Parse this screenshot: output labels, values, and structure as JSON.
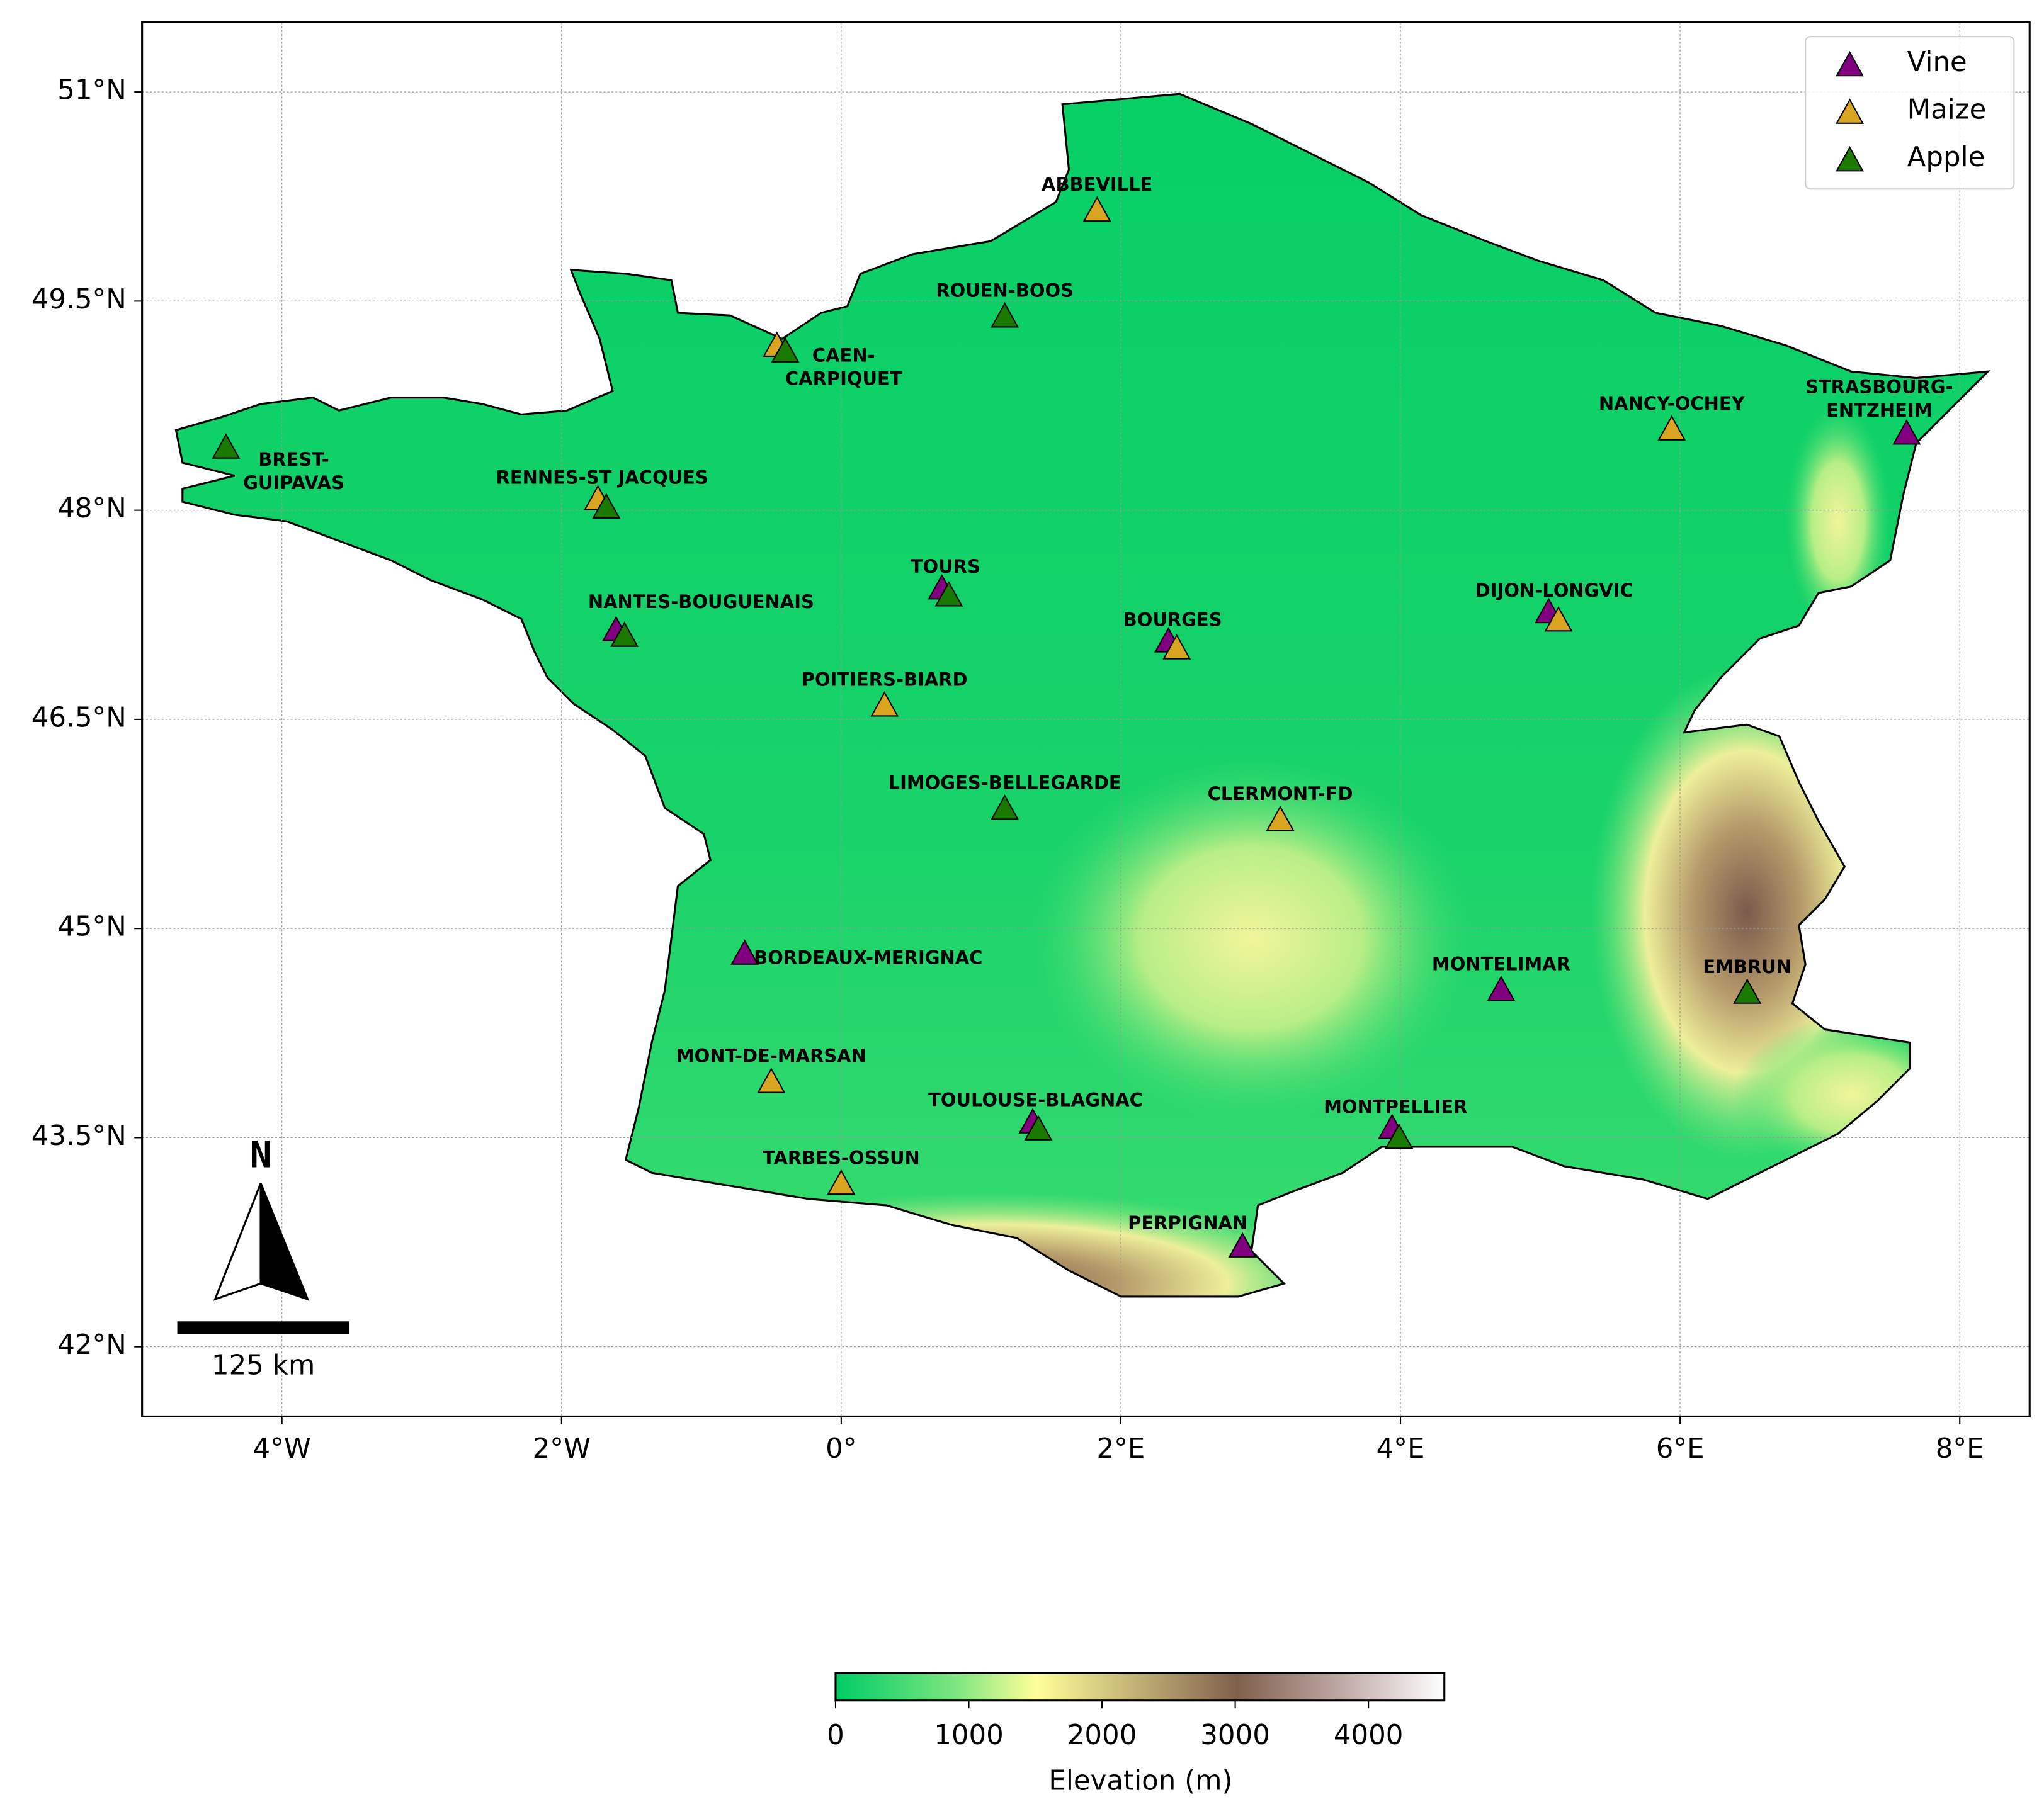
{
  "chart_data": {
    "type": "map",
    "xlim": [
      -5,
      8.5
    ],
    "ylim": [
      41.5,
      51.5
    ],
    "xticks": [
      {
        "value": -4,
        "label": "4°W"
      },
      {
        "value": -2,
        "label": "2°W"
      },
      {
        "value": 0,
        "label": "0°"
      },
      {
        "value": 2,
        "label": "2°E"
      },
      {
        "value": 4,
        "label": "4°E"
      },
      {
        "value": 6,
        "label": "6°E"
      },
      {
        "value": 8,
        "label": "8°E"
      }
    ],
    "yticks": [
      {
        "value": 42,
        "label": "42°N"
      },
      {
        "value": 43.5,
        "label": "43.5°N"
      },
      {
        "value": 45,
        "label": "45°N"
      },
      {
        "value": 46.5,
        "label": "46.5°N"
      },
      {
        "value": 48,
        "label": "48°N"
      },
      {
        "value": 49.5,
        "label": "49.5°N"
      },
      {
        "value": 51,
        "label": "51°N"
      }
    ],
    "grid": true,
    "legend": "upper right",
    "series": [
      {
        "name": "Vine",
        "color": "#800080",
        "x": [
          7.62,
          5.06,
          -1.61,
          0.72,
          2.34,
          -0.69,
          1.37,
          4.72,
          3.94,
          2.87
        ],
        "values": [
          48.54,
          47.26,
          47.13,
          47.43,
          47.05,
          44.81,
          43.6,
          44.55,
          43.56,
          42.71
        ]
      },
      {
        "name": "Maize",
        "color": "#daa520",
        "x": [
          1.83,
          -0.46,
          -1.74,
          5.94,
          5.13,
          2.4,
          0.31,
          3.14,
          -0.5,
          0.0
        ],
        "values": [
          50.14,
          49.17,
          48.07,
          48.57,
          47.2,
          47.0,
          46.59,
          45.77,
          43.89,
          43.16
        ]
      },
      {
        "name": "Apple",
        "color": "#1a7a00",
        "x": [
          1.17,
          -0.4,
          -4.4,
          -1.68,
          -1.55,
          0.77,
          1.17,
          1.41,
          3.99,
          6.48
        ],
        "values": [
          49.38,
          49.13,
          48.44,
          48.01,
          47.09,
          47.38,
          45.85,
          43.55,
          43.49,
          44.53
        ]
      }
    ],
    "stations": [
      {
        "label": [
          "ABBEVILLE"
        ],
        "x": 1.83,
        "y": 50.14
      },
      {
        "label": [
          "ROUEN-BOOS"
        ],
        "x": 1.17,
        "y": 49.38
      },
      {
        "label": [
          "CAEN-",
          "CARPIQUET"
        ],
        "x": -0.43,
        "y": 49.15
      },
      {
        "label": [
          "BREST-",
          "GUIPAVAS"
        ],
        "x": -4.4,
        "y": 48.44
      },
      {
        "label": [
          "RENNES-ST JACQUES"
        ],
        "x": -1.71,
        "y": 48.04
      },
      {
        "label": [
          "STRASBOURG-",
          "ENTZHEIM"
        ],
        "x": 7.62,
        "y": 48.54
      },
      {
        "label": [
          "NANCY-OCHEY"
        ],
        "x": 5.94,
        "y": 48.57
      },
      {
        "label": [
          "NANTES-BOUGUENAIS"
        ],
        "x": -1.58,
        "y": 47.11
      },
      {
        "label": [
          "TOURS"
        ],
        "x": 0.745,
        "y": 47.4
      },
      {
        "label": [
          "BOURGES"
        ],
        "x": 2.37,
        "y": 47.02
      },
      {
        "label": [
          "DIJON-LONGVIC"
        ],
        "x": 5.1,
        "y": 47.23
      },
      {
        "label": [
          "POITIERS-BIARD"
        ],
        "x": 0.31,
        "y": 46.59
      },
      {
        "label": [
          "LIMOGES-BELLEGARDE"
        ],
        "x": 1.17,
        "y": 45.85
      },
      {
        "label": [
          "CLERMONT-FD"
        ],
        "x": 3.14,
        "y": 45.77
      },
      {
        "label": [
          "BORDEAUX-MERIGNAC"
        ],
        "x": -0.69,
        "y": 44.81
      },
      {
        "label": [
          "MONTELIMAR"
        ],
        "x": 4.72,
        "y": 44.55
      },
      {
        "label": [
          "EMBRUN"
        ],
        "x": 6.48,
        "y": 44.53
      },
      {
        "label": [
          "MONT-DE-MARSAN"
        ],
        "x": -0.5,
        "y": 43.89
      },
      {
        "label": [
          "TOULOUSE-BLAGNAC"
        ],
        "x": 1.39,
        "y": 43.575
      },
      {
        "label": [
          "MONTPELLIER"
        ],
        "x": 3.965,
        "y": 43.525
      },
      {
        "label": [
          "TARBES-OSSUN"
        ],
        "x": 0.0,
        "y": 43.16
      },
      {
        "label": [
          "PERPIGNAN"
        ],
        "x": 2.87,
        "y": 42.71
      }
    ],
    "north_arrow": "N",
    "scale_bar": "125 km",
    "colorbar": {
      "label": "Elevation (m)",
      "lim": [
        0,
        4570
      ],
      "ticks": [
        0,
        1000,
        2000,
        3000,
        4000
      ]
    }
  }
}
